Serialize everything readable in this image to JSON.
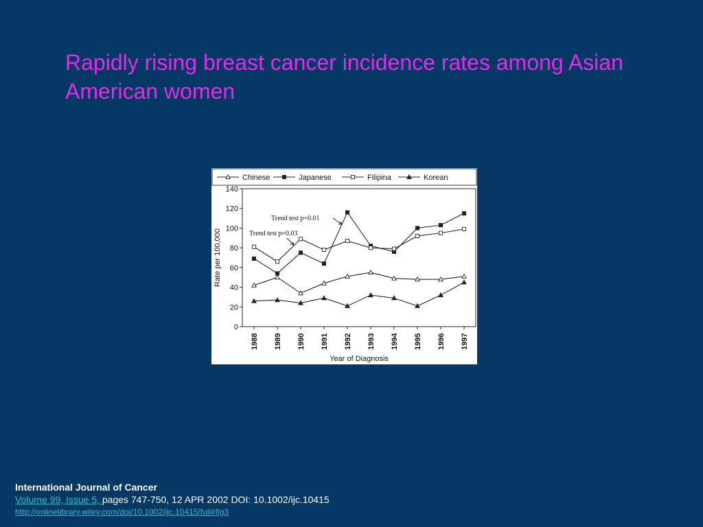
{
  "slide": {
    "title": "Rapidly rising breast cancer incidence rates among Asian American women"
  },
  "citation": {
    "journal": "International Journal of Cancer",
    "volume_link": "Volume 99, Issue 5, ",
    "details": "pages 747-750, 12 APR 2002 DOI: 10.1002/ijc.10415",
    "url": "http://onlinelibrary.wiley.com/doi/10.1002/ijc.10415/full#fig3"
  },
  "chart_data": {
    "type": "line",
    "title": "",
    "xlabel": "Year of Diagnosis",
    "ylabel": "Rate per 100,000",
    "ylim": [
      0,
      140
    ],
    "yticks": [
      0,
      20,
      40,
      60,
      80,
      100,
      120,
      140
    ],
    "grid": false,
    "legend_position": "top",
    "categories": [
      "1988",
      "1989",
      "1990",
      "1991",
      "1992",
      "1993",
      "1994",
      "1995",
      "1996",
      "1997"
    ],
    "series": [
      {
        "name": "Chinese",
        "marker": "triangle-open",
        "values": [
          42,
          50,
          34,
          44,
          51,
          55,
          49,
          48,
          48,
          51
        ]
      },
      {
        "name": "Japanese",
        "marker": "square-filled",
        "values": [
          69,
          54,
          75,
          64,
          116,
          82,
          76,
          100,
          103,
          115
        ]
      },
      {
        "name": "Filipina",
        "marker": "square-open",
        "values": [
          81,
          66,
          89,
          78,
          87,
          80,
          79,
          92,
          95,
          99
        ]
      },
      {
        "name": "Korean",
        "marker": "triangle-filled",
        "values": [
          26,
          27,
          24,
          29,
          21,
          32,
          29,
          21,
          32,
          45
        ]
      }
    ],
    "annotations": [
      {
        "text": "Trend test p=0.01",
        "series": "Japanese",
        "point_year": "1992"
      },
      {
        "text": "Trend test p=0.03",
        "series": "Filipina",
        "point_year": "1990"
      }
    ]
  }
}
